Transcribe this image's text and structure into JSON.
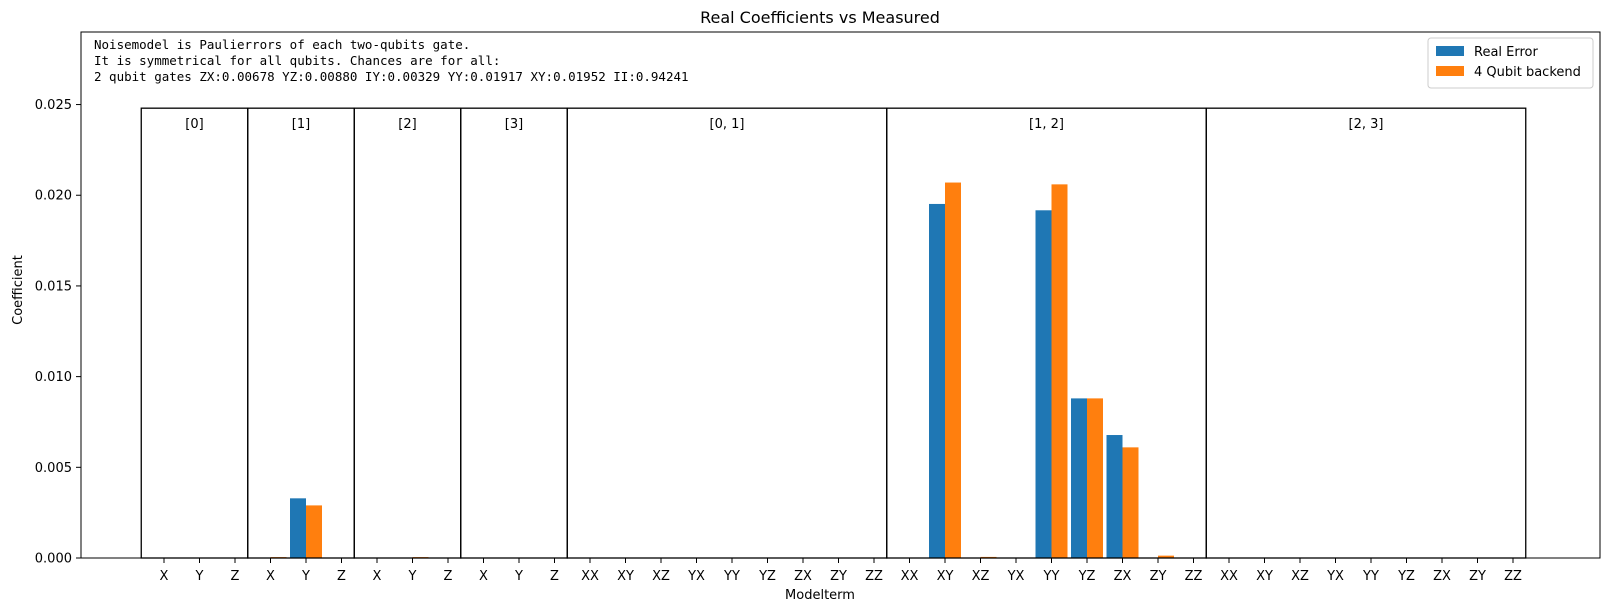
{
  "chart_data": {
    "type": "bar",
    "title": "Real Coefficients vs Measured",
    "xlabel": "Modelterm",
    "ylabel": "Coefficient",
    "ylim": [
      0,
      0.029
    ],
    "yticks": [
      "0.000",
      "0.005",
      "0.010",
      "0.015",
      "0.020",
      "0.025"
    ],
    "ytick_values": [
      0,
      0.005,
      0.01,
      0.015,
      0.02,
      0.025
    ],
    "group_box_top": 0.0248,
    "legend_position": "top-right",
    "annotation_lines": [
      "Noisemodel is Paulierrors of each two-qubits gate.",
      "It is symmetrical for all qubits. Chances are for all:",
      "2 qubit gates ZX:0.00678   YZ:0.00880   IY:0.00329   YY:0.01917   XY:0.01952   II:0.94241"
    ],
    "groups": [
      {
        "label": "[0]",
        "terms": [
          "X",
          "Y",
          "Z"
        ]
      },
      {
        "label": "[1]",
        "terms": [
          "X",
          "Y",
          "Z"
        ]
      },
      {
        "label": "[2]",
        "terms": [
          "X",
          "Y",
          "Z"
        ]
      },
      {
        "label": "[3]",
        "terms": [
          "X",
          "Y",
          "Z"
        ]
      },
      {
        "label": "[0, 1]",
        "terms": [
          "XX",
          "XY",
          "XZ",
          "YX",
          "YY",
          "YZ",
          "ZX",
          "ZY",
          "ZZ"
        ]
      },
      {
        "label": "[1, 2]",
        "terms": [
          "XX",
          "XY",
          "XZ",
          "YX",
          "YY",
          "YZ",
          "ZX",
          "ZY",
          "ZZ"
        ]
      },
      {
        "label": "[2, 3]",
        "terms": [
          "XX",
          "XY",
          "XZ",
          "YX",
          "YY",
          "YZ",
          "ZX",
          "ZY",
          "ZZ"
        ]
      }
    ],
    "series": [
      {
        "name": "Real Error",
        "color": "#1f77b4",
        "values": [
          0,
          0,
          0,
          0,
          0.00329,
          0,
          0,
          0,
          0,
          0,
          0,
          0,
          0,
          0,
          0,
          0,
          0,
          0,
          0,
          0,
          0,
          0,
          0.01952,
          0,
          0,
          0.01917,
          0.0088,
          0.00678,
          0,
          0,
          0,
          0,
          0,
          0,
          0,
          0,
          0,
          0,
          0
        ]
      },
      {
        "name": "4 Qubit backend",
        "color": "#ff7f0e",
        "values": [
          0,
          0,
          0,
          5e-05,
          0.0029,
          0,
          0,
          5e-05,
          0,
          0,
          0,
          0,
          0,
          0,
          0,
          0,
          0,
          0,
          0,
          0,
          0,
          0,
          0.0207,
          6e-05,
          0,
          0.0206,
          0.0088,
          0.0061,
          0.00013,
          0,
          0,
          0,
          0,
          0,
          0,
          0,
          0,
          0,
          0
        ]
      }
    ]
  }
}
